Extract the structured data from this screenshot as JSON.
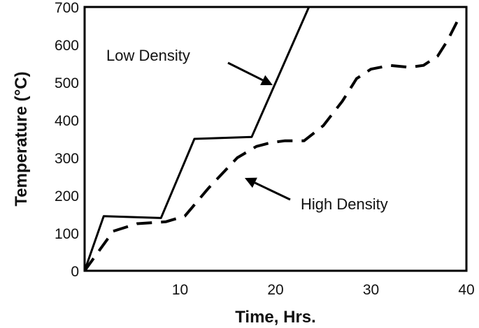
{
  "chart_data": {
    "type": "line",
    "xlabel": "Time, Hrs.",
    "ylabel": "Temperature (°C)",
    "xlim": [
      0,
      40
    ],
    "ylim": [
      0,
      700
    ],
    "xticks": [
      10,
      20,
      30,
      40
    ],
    "yticks": [
      0,
      100,
      200,
      300,
      400,
      500,
      600,
      700
    ],
    "grid": false,
    "series": [
      {
        "name": "Low Density",
        "style": "solid",
        "color": "#000000",
        "x": [
          0,
          2,
          8,
          11.5,
          17.5,
          23.5
        ],
        "y": [
          0,
          145,
          140,
          350,
          355,
          700
        ]
      },
      {
        "name": "High Density",
        "style": "dashed",
        "color": "#000000",
        "x": [
          0,
          3,
          5.5,
          8.5,
          10.5,
          13,
          16,
          18,
          19.5,
          21,
          23,
          25,
          27,
          28.5,
          30,
          32,
          34,
          35.5,
          37,
          38,
          39
        ],
        "y": [
          0,
          105,
          125,
          130,
          145,
          220,
          300,
          330,
          340,
          345,
          345,
          385,
          450,
          510,
          535,
          545,
          540,
          545,
          570,
          610,
          660
        ]
      }
    ],
    "annotations": [
      {
        "text": "Low Density",
        "series": 0
      },
      {
        "text": "High Density",
        "series": 1
      }
    ]
  }
}
